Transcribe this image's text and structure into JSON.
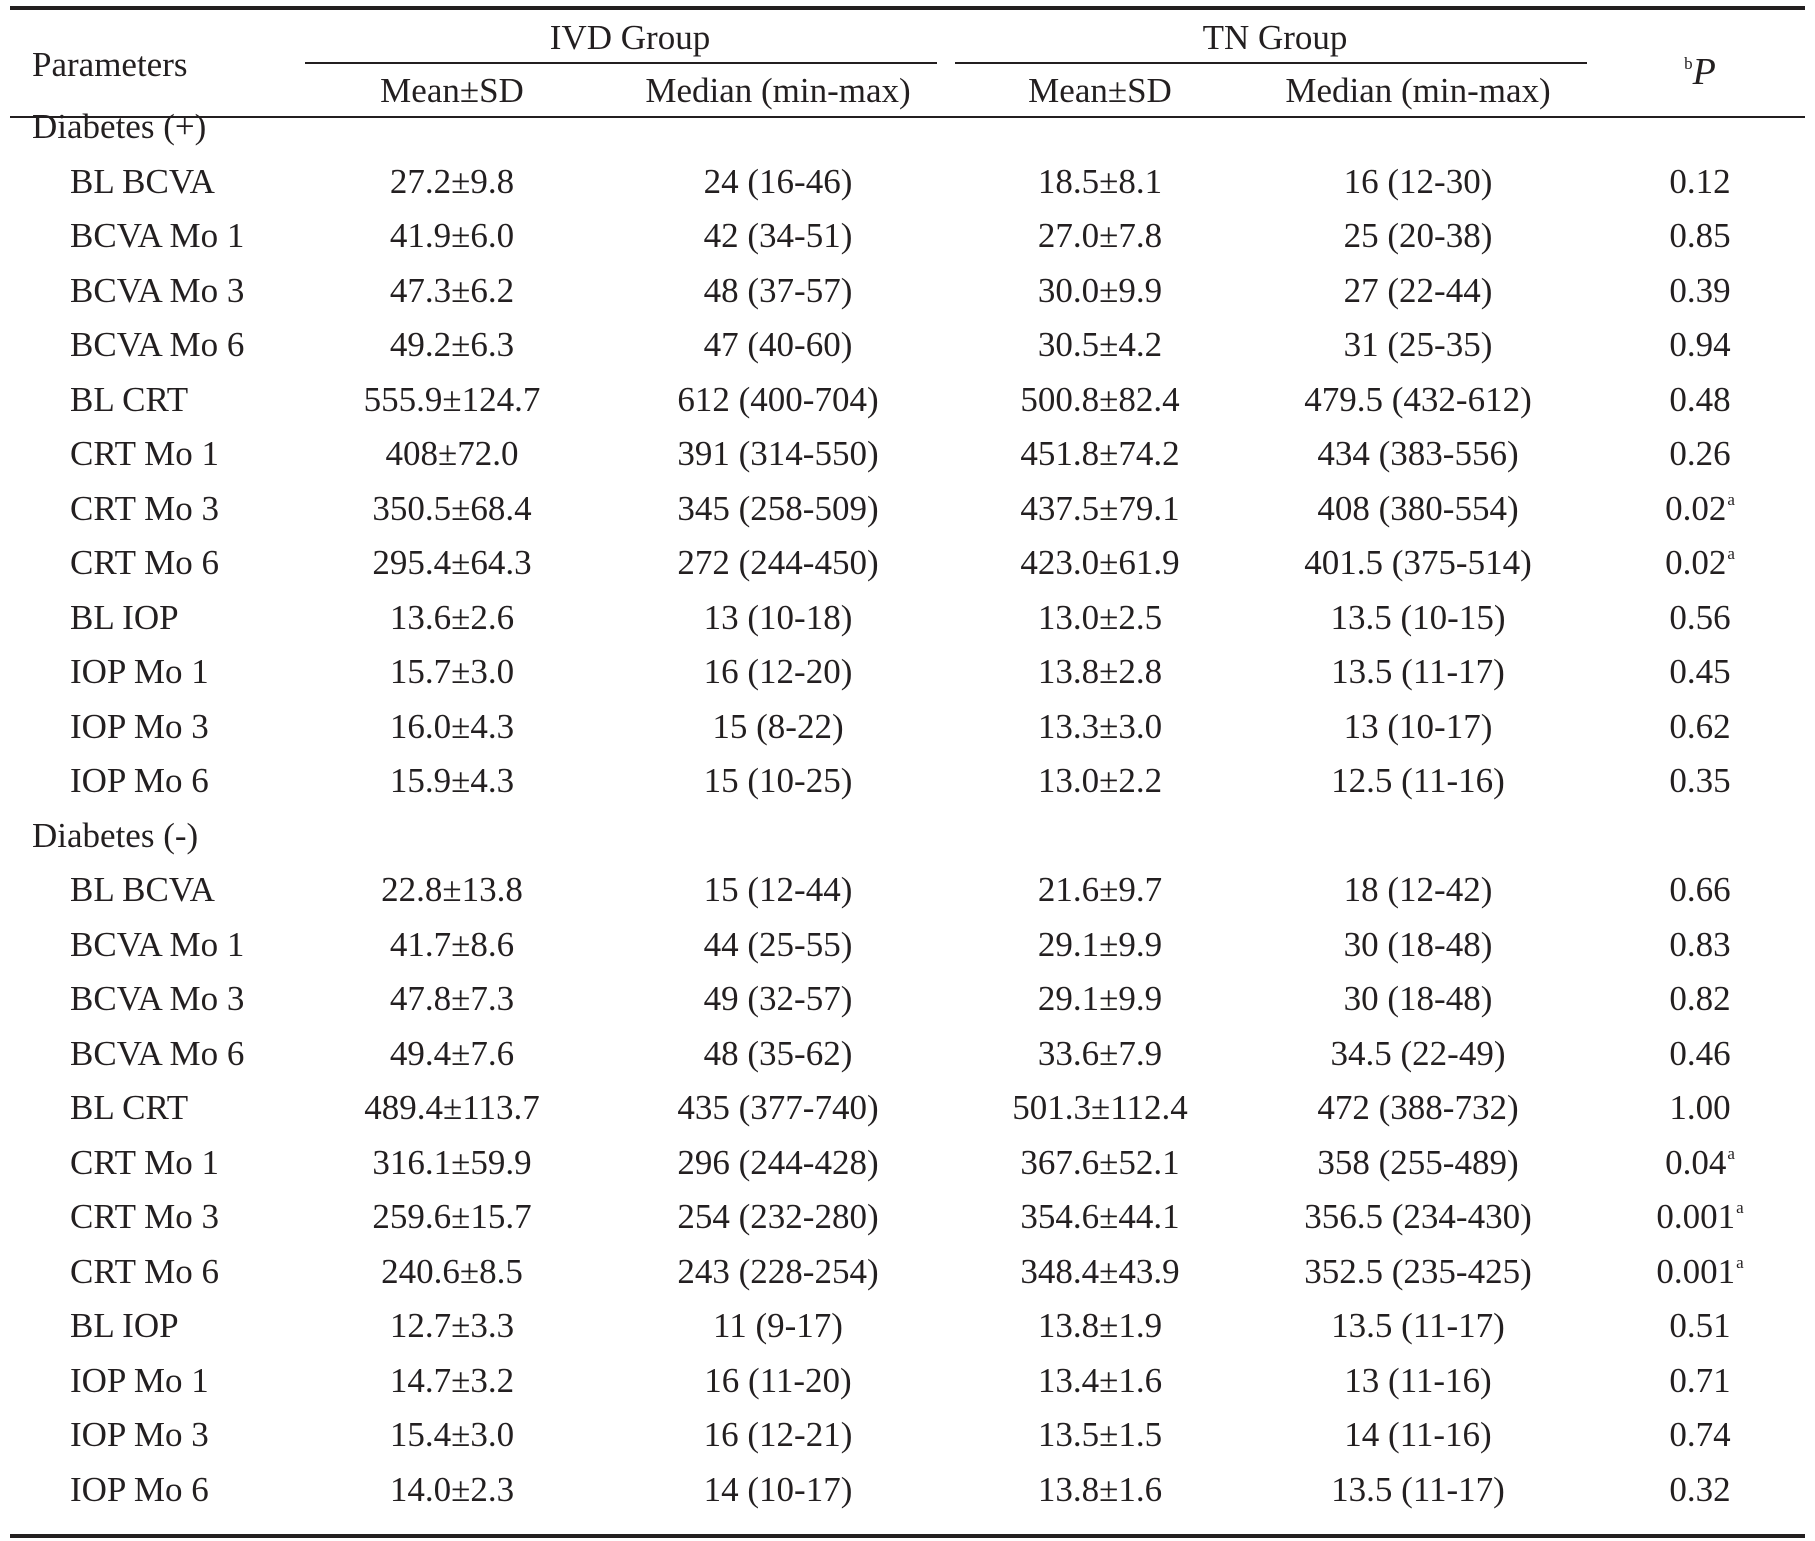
{
  "header": {
    "parameters": "Parameters",
    "ivd_group": "IVD Group",
    "tn_group": "TN Group",
    "p_sup": "b",
    "p_label": "P",
    "mean_sd": "Mean±SD",
    "median": "Median (min-max)"
  },
  "sections": [
    {
      "title": "Diabetes (+)",
      "rows": [
        {
          "param": "BL BCVA",
          "ivd_mean": "27.2±9.8",
          "ivd_median": "24 (16-46)",
          "tn_mean": "18.5±8.1",
          "tn_median": "16 (12-30)",
          "p": "0.12",
          "p_sup": ""
        },
        {
          "param": "BCVA Mo 1",
          "ivd_mean": "41.9±6.0",
          "ivd_median": "42 (34-51)",
          "tn_mean": "27.0±7.8",
          "tn_median": "25 (20-38)",
          "p": "0.85",
          "p_sup": ""
        },
        {
          "param": "BCVA Mo 3",
          "ivd_mean": "47.3±6.2",
          "ivd_median": "48 (37-57)",
          "tn_mean": "30.0±9.9",
          "tn_median": "27 (22-44)",
          "p": "0.39",
          "p_sup": ""
        },
        {
          "param": "BCVA Mo 6",
          "ivd_mean": "49.2±6.3",
          "ivd_median": "47 (40-60)",
          "tn_mean": "30.5±4.2",
          "tn_median": "31 (25-35)",
          "p": "0.94",
          "p_sup": ""
        },
        {
          "param": "BL CRT",
          "ivd_mean": "555.9±124.7",
          "ivd_median": "612 (400-704)",
          "tn_mean": "500.8±82.4",
          "tn_median": "479.5 (432-612)",
          "p": "0.48",
          "p_sup": ""
        },
        {
          "param": "CRT Mo 1",
          "ivd_mean": "408±72.0",
          "ivd_median": "391 (314-550)",
          "tn_mean": "451.8±74.2",
          "tn_median": "434 (383-556)",
          "p": "0.26",
          "p_sup": ""
        },
        {
          "param": "CRT Mo 3",
          "ivd_mean": "350.5±68.4",
          "ivd_median": "345 (258-509)",
          "tn_mean": "437.5±79.1",
          "tn_median": "408 (380-554)",
          "p": "0.02",
          "p_sup": "a"
        },
        {
          "param": "CRT Mo 6",
          "ivd_mean": "295.4±64.3",
          "ivd_median": "272 (244-450)",
          "tn_mean": "423.0±61.9",
          "tn_median": "401.5 (375-514)",
          "p": "0.02",
          "p_sup": "a"
        },
        {
          "param": "BL IOP",
          "ivd_mean": "13.6±2.6",
          "ivd_median": "13 (10-18)",
          "tn_mean": "13.0±2.5",
          "tn_median": "13.5 (10-15)",
          "p": "0.56",
          "p_sup": ""
        },
        {
          "param": "IOP Mo 1",
          "ivd_mean": "15.7±3.0",
          "ivd_median": "16 (12-20)",
          "tn_mean": "13.8±2.8",
          "tn_median": "13.5 (11-17)",
          "p": "0.45",
          "p_sup": ""
        },
        {
          "param": "IOP Mo 3",
          "ivd_mean": "16.0±4.3",
          "ivd_median": "15 (8-22)",
          "tn_mean": "13.3±3.0",
          "tn_median": "13 (10-17)",
          "p": "0.62",
          "p_sup": ""
        },
        {
          "param": "IOP Mo 6",
          "ivd_mean": "15.9±4.3",
          "ivd_median": "15 (10-25)",
          "tn_mean": "13.0±2.2",
          "tn_median": "12.5 (11-16)",
          "p": "0.35",
          "p_sup": ""
        }
      ]
    },
    {
      "title": "Diabetes (-)",
      "rows": [
        {
          "param": "BL BCVA",
          "ivd_mean": "22.8±13.8",
          "ivd_median": "15 (12-44)",
          "tn_mean": "21.6±9.7",
          "tn_median": "18 (12-42)",
          "p": "0.66",
          "p_sup": ""
        },
        {
          "param": "BCVA Mo 1",
          "ivd_mean": "41.7±8.6",
          "ivd_median": "44 (25-55)",
          "tn_mean": "29.1±9.9",
          "tn_median": "30 (18-48)",
          "p": "0.83",
          "p_sup": ""
        },
        {
          "param": "BCVA Mo 3",
          "ivd_mean": "47.8±7.3",
          "ivd_median": "49 (32-57)",
          "tn_mean": "29.1±9.9",
          "tn_median": "30 (18-48)",
          "p": "0.82",
          "p_sup": ""
        },
        {
          "param": "BCVA Mo 6",
          "ivd_mean": "49.4±7.6",
          "ivd_median": "48 (35-62)",
          "tn_mean": "33.6±7.9",
          "tn_median": "34.5 (22-49)",
          "p": "0.46",
          "p_sup": ""
        },
        {
          "param": "BL CRT",
          "ivd_mean": "489.4±113.7",
          "ivd_median": "435 (377-740)",
          "tn_mean": "501.3±112.4",
          "tn_median": "472 (388-732)",
          "p": "1.00",
          "p_sup": ""
        },
        {
          "param": "CRT Mo 1",
          "ivd_mean": "316.1±59.9",
          "ivd_median": "296 (244-428)",
          "tn_mean": "367.6±52.1",
          "tn_median": "358 (255-489)",
          "p": "0.04",
          "p_sup": "a"
        },
        {
          "param": "CRT Mo 3",
          "ivd_mean": "259.6±15.7",
          "ivd_median": "254 (232-280)",
          "tn_mean": "354.6±44.1",
          "tn_median": "356.5 (234-430)",
          "p": "0.001",
          "p_sup": "a"
        },
        {
          "param": "CRT Mo 6",
          "ivd_mean": "240.6±8.5",
          "ivd_median": "243 (228-254)",
          "tn_mean": "348.4±43.9",
          "tn_median": "352.5 (235-425)",
          "p": "0.001",
          "p_sup": "a"
        },
        {
          "param": "BL IOP",
          "ivd_mean": "12.7±3.3",
          "ivd_median": "11 (9-17)",
          "tn_mean": "13.8±1.9",
          "tn_median": "13.5 (11-17)",
          "p": "0.51",
          "p_sup": ""
        },
        {
          "param": "IOP Mo 1",
          "ivd_mean": "14.7±3.2",
          "ivd_median": "16 (11-20)",
          "tn_mean": "13.4±1.6",
          "tn_median": "13 (11-16)",
          "p": "0.71",
          "p_sup": ""
        },
        {
          "param": "IOP Mo 3",
          "ivd_mean": "15.4±3.0",
          "ivd_median": "16 (12-21)",
          "tn_mean": "13.5±1.5",
          "tn_median": "14 (11-16)",
          "p": "0.74",
          "p_sup": ""
        },
        {
          "param": "IOP Mo 6",
          "ivd_mean": "14.0±2.3",
          "ivd_median": "14 (10-17)",
          "tn_mean": "13.8±1.6",
          "tn_median": "13.5 (11-17)",
          "p": "0.32",
          "p_sup": ""
        }
      ]
    }
  ]
}
